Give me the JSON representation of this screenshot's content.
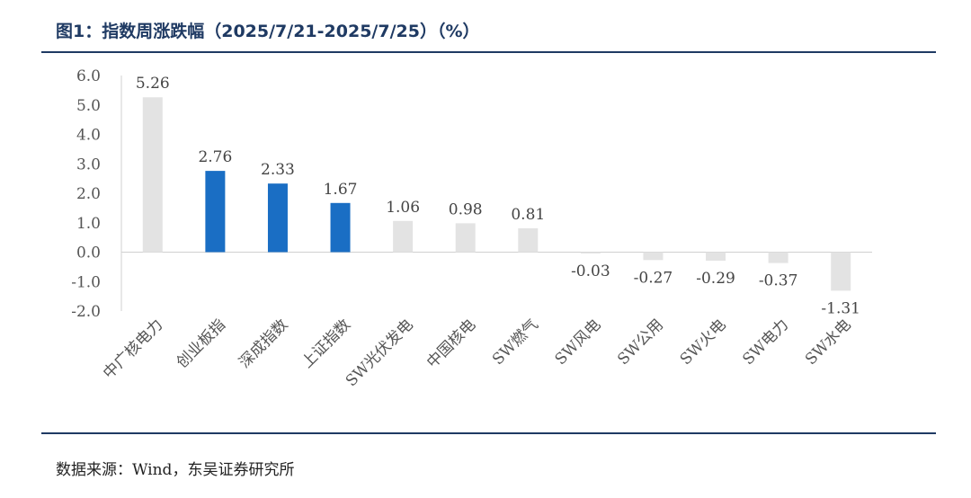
{
  "figure": {
    "title": "图1：指数周涨跌幅（2025/7/21-2025/7/25）（%）",
    "source": "数据来源：Wind，东吴证券研究所"
  },
  "colors": {
    "highlight": "#1a6ec4",
    "other": "#e3e3e3",
    "rule": "#1f3a63"
  },
  "chart_data": {
    "type": "bar",
    "categories": [
      "中广核电力",
      "创业板指",
      "深成指数",
      "上证指数",
      "SW光伏发电",
      "中国核电",
      "SW燃气",
      "SW风电",
      "SW公用",
      "SW火电",
      "SW电力",
      "SW水电"
    ],
    "values": [
      5.26,
      2.76,
      2.33,
      1.67,
      1.06,
      0.98,
      0.81,
      -0.03,
      -0.27,
      -0.29,
      -0.37,
      -1.31
    ],
    "value_labels": [
      "5.26",
      "2.76",
      "2.33",
      "1.67",
      "1.06",
      "0.98",
      "0.81",
      "-0.03",
      "-0.27",
      "-0.29",
      "-0.37",
      "-1.31"
    ],
    "highlighted": [
      false,
      true,
      true,
      true,
      false,
      false,
      false,
      false,
      false,
      false,
      false,
      false
    ],
    "yticks": [
      "6.0",
      "5.0",
      "4.0",
      "3.0",
      "2.0",
      "1.0",
      "0.0",
      "-1.0",
      "-2.0"
    ],
    "ylim": [
      -2.0,
      6.0
    ],
    "xlabel": "",
    "ylabel": "",
    "grid": false,
    "legend": "none"
  }
}
